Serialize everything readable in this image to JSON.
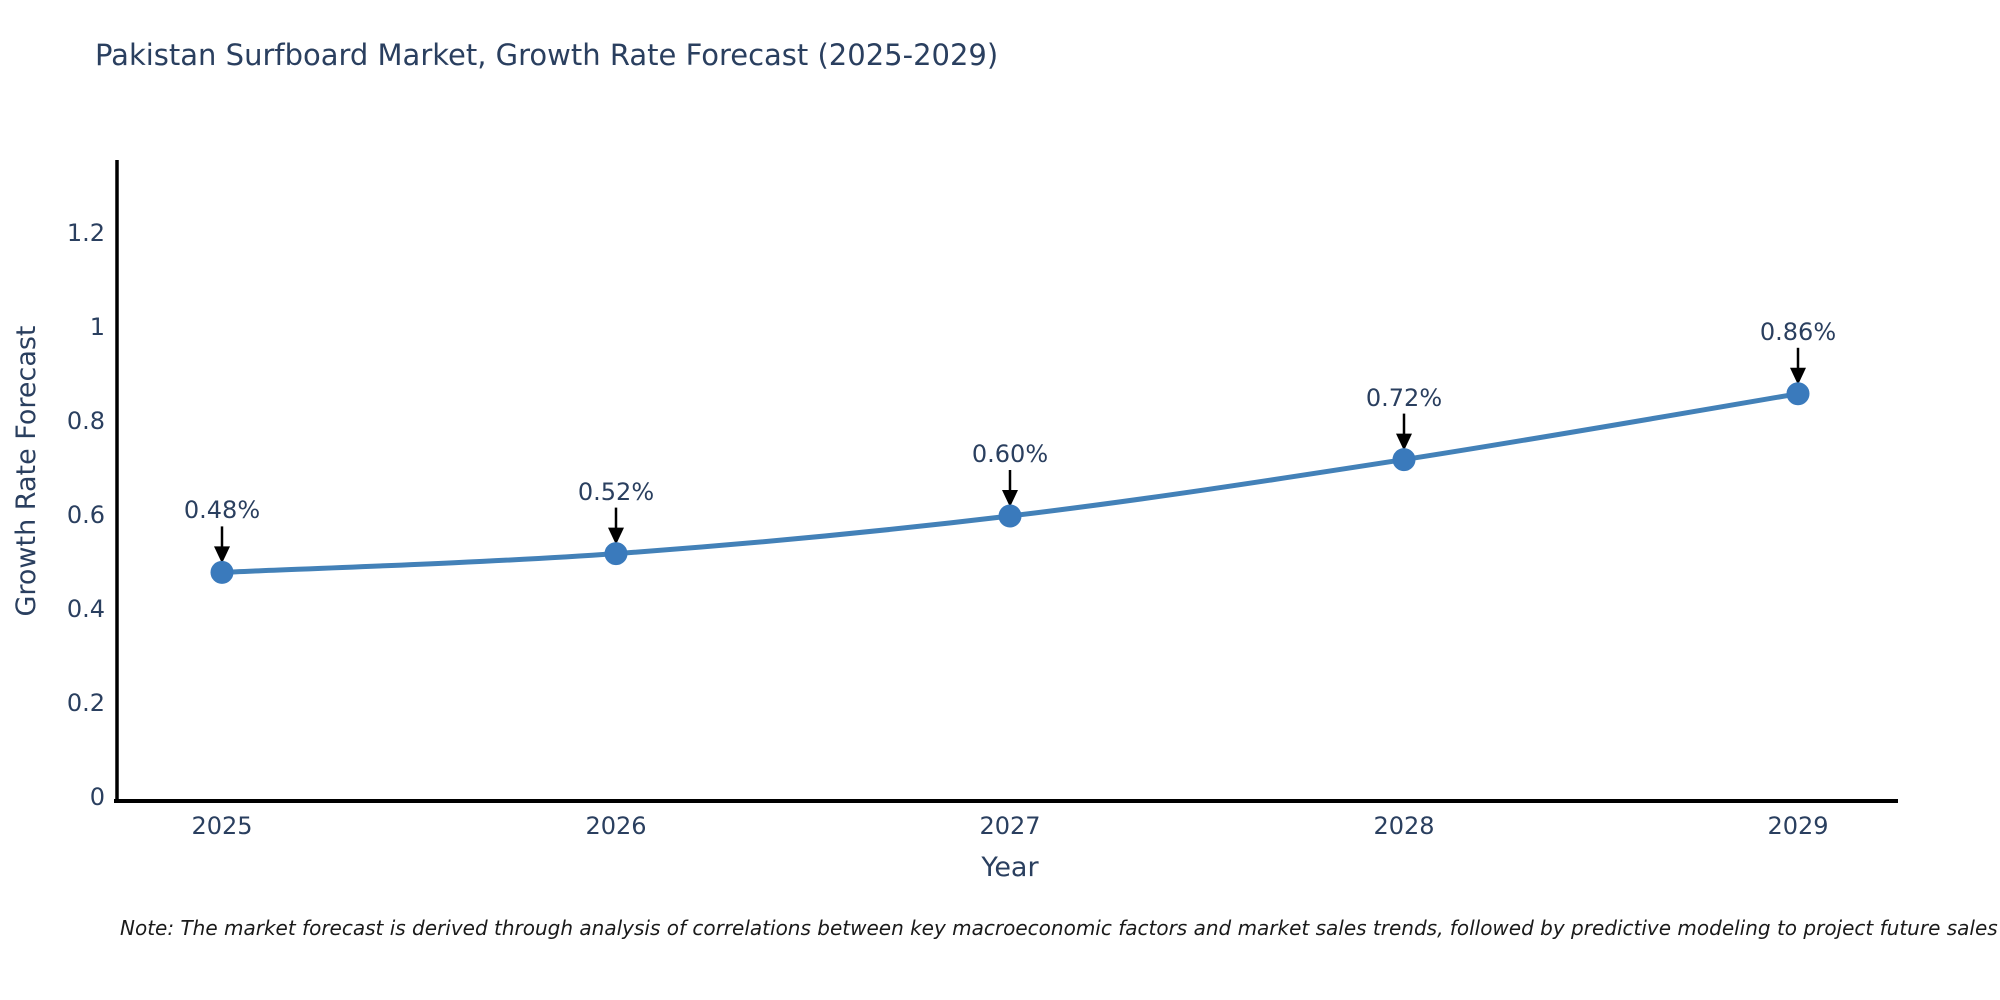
{
  "title": "Pakistan Surfboard Market, Growth Rate Forecast (2025-2029)",
  "note": "Note: The market forecast is derived through analysis of correlations between key macroeconomic factors and market sales trends, followed by predictive modeling to project future sales",
  "chart_data": {
    "type": "line",
    "title": "Pakistan Surfboard Market, Growth Rate Forecast (2025-2029)",
    "xlabel": "Year",
    "ylabel": "Growth Rate Forecast",
    "categories": [
      "2025",
      "2026",
      "2027",
      "2028",
      "2029"
    ],
    "series": [
      {
        "name": "Growth Rate Forecast",
        "values": [
          0.48,
          0.52,
          0.6,
          0.72,
          0.86
        ]
      }
    ],
    "point_labels": [
      "0.48%",
      "0.52%",
      "0.60%",
      "0.72%",
      "0.86%"
    ],
    "yticks": [
      0,
      0.2,
      0.4,
      0.6,
      0.8,
      1,
      1.2
    ],
    "ylim": [
      0,
      1.36
    ],
    "xlim_categories": [
      "2025",
      "2029"
    ],
    "grid": false,
    "legend_position": "none",
    "annotation_style": "arrow-down-to-point",
    "colors": {
      "line": "#4381b8",
      "marker": "#3a7abc",
      "text": "#2a3f5f",
      "axis": "#000000",
      "arrow": "#000000",
      "background": "#ffffff"
    }
  }
}
